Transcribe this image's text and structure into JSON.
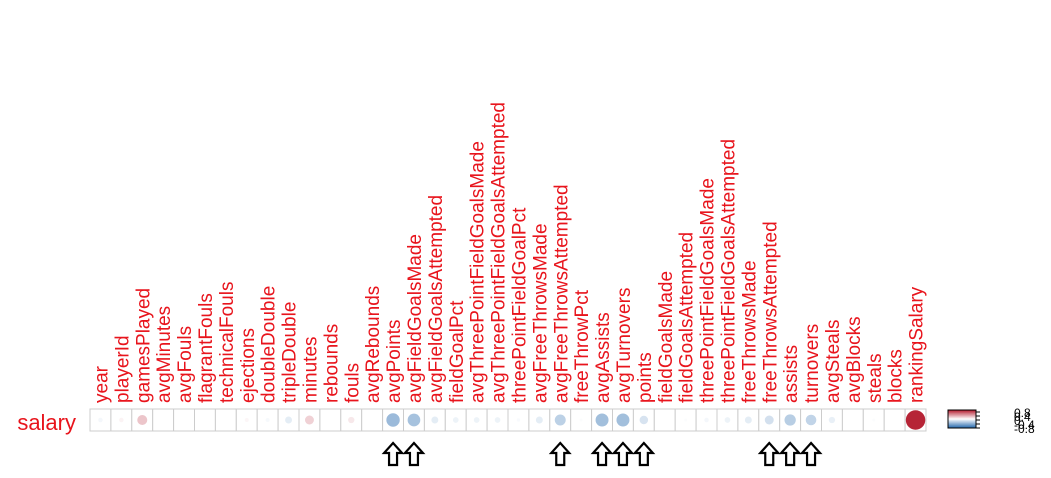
{
  "chart_data": {
    "type": "heatmap",
    "row_label": "salary",
    "columns": [
      "year",
      "playerId",
      "gamesPlayed",
      "avgMinutes",
      "avgFouls",
      "flagrantFouls",
      "technicalFouls",
      "ejections",
      "doubleDouble",
      "tripleDouble",
      "minutes",
      "rebounds",
      "fouls",
      "avgRebounds",
      "avgPoints",
      "avgFieldGoalsMade",
      "avgFieldGoalsAttempted",
      "fieldGoalPct",
      "avgThreePointFieldGoalsMade",
      "avgThreePointFieldGoalsAttempted",
      "threePointFieldGoalPct",
      "avgFreeThrowsMade",
      "avgFreeThrowsAttempted",
      "freeThrowPct",
      "avgAssists",
      "avgTurnovers",
      "points",
      "fieldGoalsMade",
      "fieldGoalsAttempted",
      "threePointFieldGoalsMade",
      "threePointFieldGoalsAttempted",
      "freeThrowsMade",
      "freeThrowsAttempted",
      "assists",
      "turnovers",
      "avgSteals",
      "avgBlocks",
      "steals",
      "blocks",
      "rankingSalary"
    ],
    "values": [
      -0.05,
      0.05,
      0.25,
      0.0,
      0.0,
      0.0,
      0.0,
      0.04,
      -0.04,
      -0.12,
      0.2,
      0.0,
      0.1,
      0.0,
      -0.45,
      -0.4,
      -0.12,
      -0.08,
      -0.08,
      -0.08,
      -0.03,
      -0.12,
      -0.3,
      -0.02,
      -0.42,
      -0.42,
      -0.18,
      0.0,
      -0.02,
      -0.05,
      -0.08,
      -0.12,
      -0.2,
      -0.32,
      -0.28,
      -0.1,
      0.0,
      -0.02,
      0.0,
      0.95
    ],
    "arrow_columns": [
      "avgPoints",
      "avgFieldGoalsMade",
      "avgFreeThrowsAttempted",
      "avgAssists",
      "avgTurnovers",
      "points",
      "freeThrowsAttempted",
      "assists",
      "turnovers"
    ],
    "color_scale": {
      "negative": "#2166ac",
      "neutral": "#ffffff",
      "positive": "#b2182b",
      "domain": [
        -1,
        1
      ]
    },
    "legend_tick_labels": [
      "0.8",
      "0.4",
      "0",
      "-0.4",
      "-0.8"
    ],
    "colors": {
      "label": "#e8141c",
      "grid": "#cccccc",
      "arrow": "#000000"
    }
  }
}
